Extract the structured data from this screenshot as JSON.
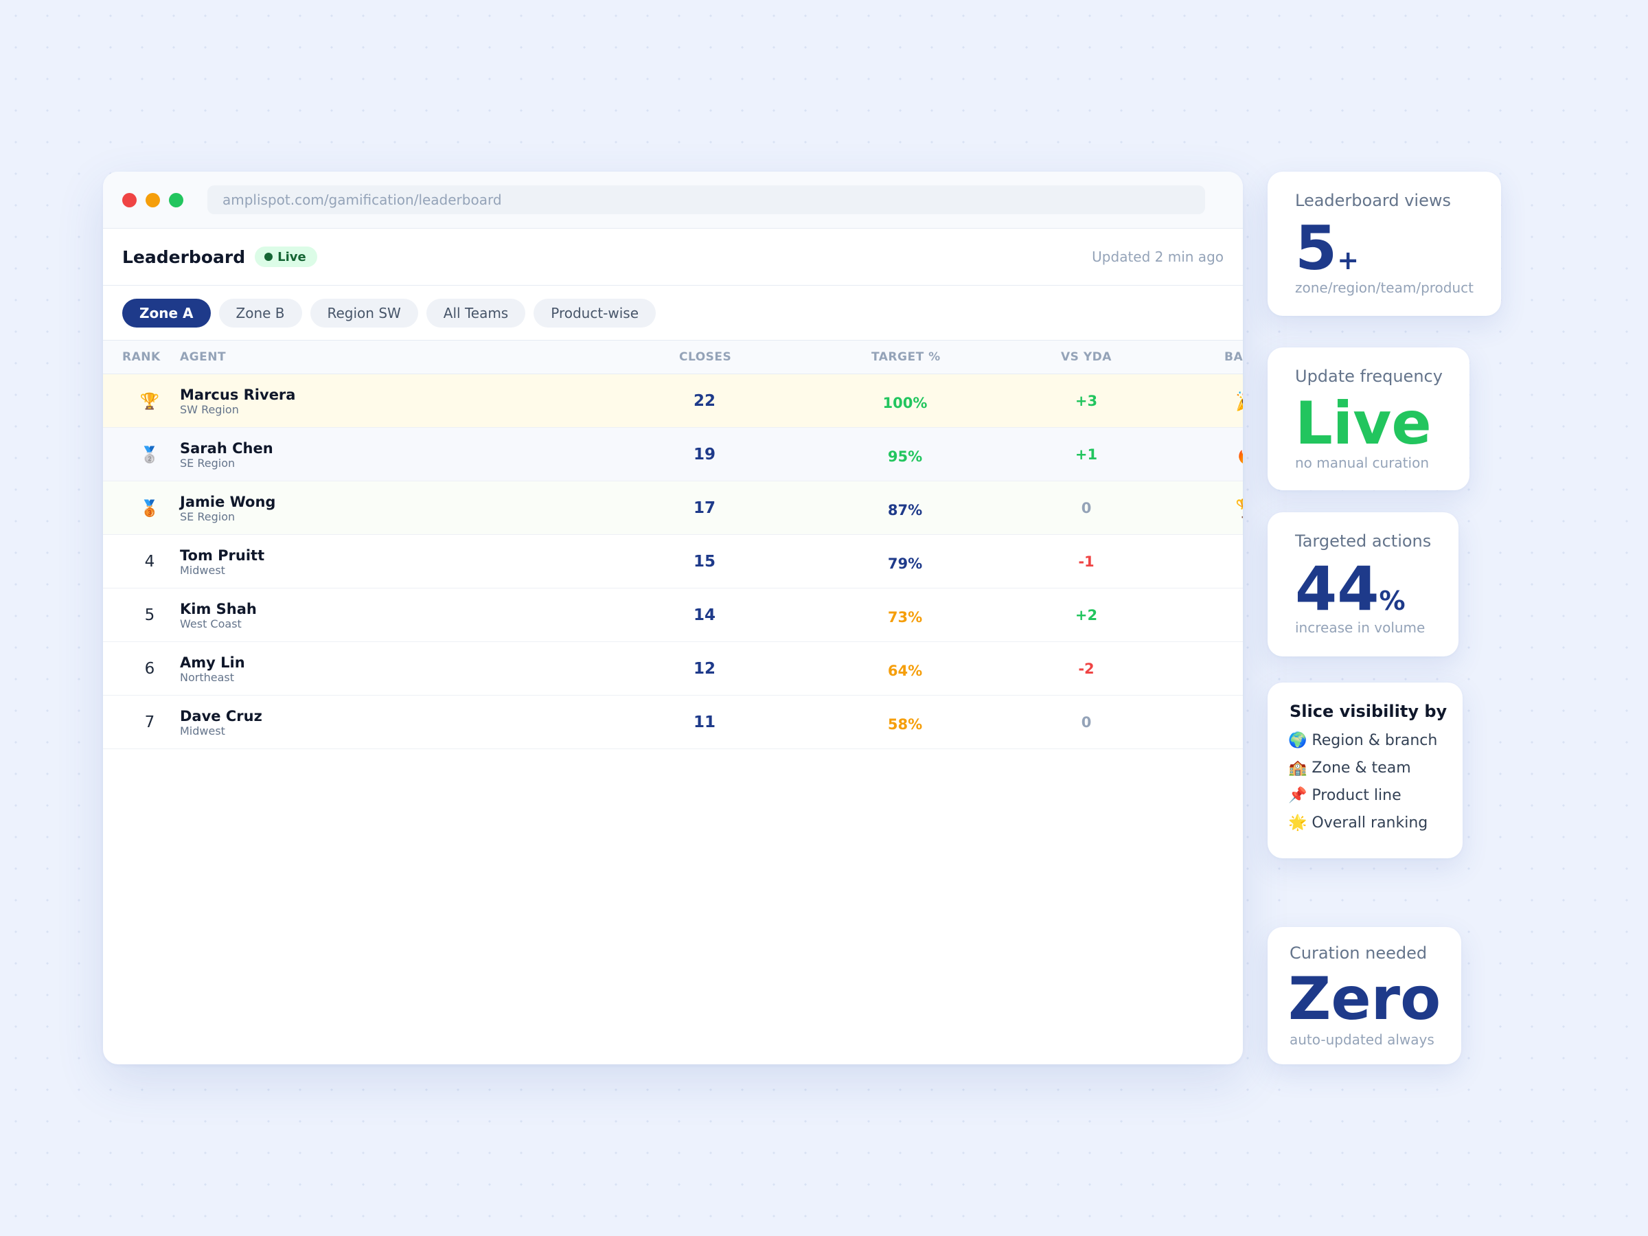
{
  "browser": {
    "url": "amplispot.com/gamification/leaderboard"
  },
  "leaderboard": {
    "title": "Leaderboard",
    "live_label": "Live",
    "updated": "Updated 2 min ago",
    "filters": [
      "Zone A",
      "Zone B",
      "Region SW",
      "All Teams",
      "Product-wise"
    ],
    "active_filter": "Zone A",
    "columns": {
      "rank": "RANK",
      "agent": "AGENT",
      "closes": "CLOSES",
      "target": "TARGET %",
      "vs_yda": "VS YDA",
      "badge": "BADGE"
    },
    "rows": [
      {
        "rank": "🏆",
        "name": "Marcus Rivera",
        "region": "SW Region",
        "closes": "22",
        "target": "100%",
        "vs_yda": "+3",
        "badge": "🎉"
      },
      {
        "rank": "🥈",
        "name": "Sarah Chen",
        "region": "SE Region",
        "closes": "19",
        "target": "95%",
        "vs_yda": "+1",
        "badge": "🔥"
      },
      {
        "rank": "🥉",
        "name": "Jamie Wong",
        "region": "SE Region",
        "closes": "17",
        "target": "87%",
        "vs_yda": "0",
        "badge": "🏆"
      },
      {
        "rank": "4",
        "name": "Tom Pruitt",
        "region": "Midwest",
        "closes": "15",
        "target": "79%",
        "vs_yda": "-1",
        "badge": ""
      },
      {
        "rank": "5",
        "name": "Kim Shah",
        "region": "West Coast",
        "closes": "14",
        "target": "73%",
        "vs_yda": "+2",
        "badge": ""
      },
      {
        "rank": "6",
        "name": "Amy Lin",
        "region": "Northeast",
        "closes": "12",
        "target": "64%",
        "vs_yda": "-2",
        "badge": ""
      },
      {
        "rank": "7",
        "name": "Dave Cruz",
        "region": "Midwest",
        "closes": "11",
        "target": "58%",
        "vs_yda": "0",
        "badge": ""
      }
    ]
  },
  "colors": {
    "accent": "#1e3a8a",
    "positive": "#22c55e",
    "negative": "#ef4444",
    "warning": "#f59e0b",
    "neutral": "#94a3b8"
  },
  "stats": {
    "views": {
      "label": "Leaderboard views",
      "value": "5",
      "suffix": "+",
      "sub": "zone/region/team/product"
    },
    "frequency": {
      "label": "Update frequency",
      "value": "Live",
      "sub": "no manual curation"
    },
    "actions": {
      "label": "Targeted actions",
      "value": "44",
      "suffix": "%",
      "sub": "increase in volume"
    },
    "slice": {
      "title": "Slice visibility by",
      "items": [
        {
          "icon": "🌍",
          "label": "Region & branch"
        },
        {
          "icon": "🏫",
          "label": "Zone & team"
        },
        {
          "icon": "📌",
          "label": "Product line"
        },
        {
          "icon": "🌟",
          "label": "Overall ranking"
        }
      ]
    },
    "curation": {
      "label": "Curation needed",
      "value": "Zero",
      "sub": "auto-updated always"
    }
  }
}
